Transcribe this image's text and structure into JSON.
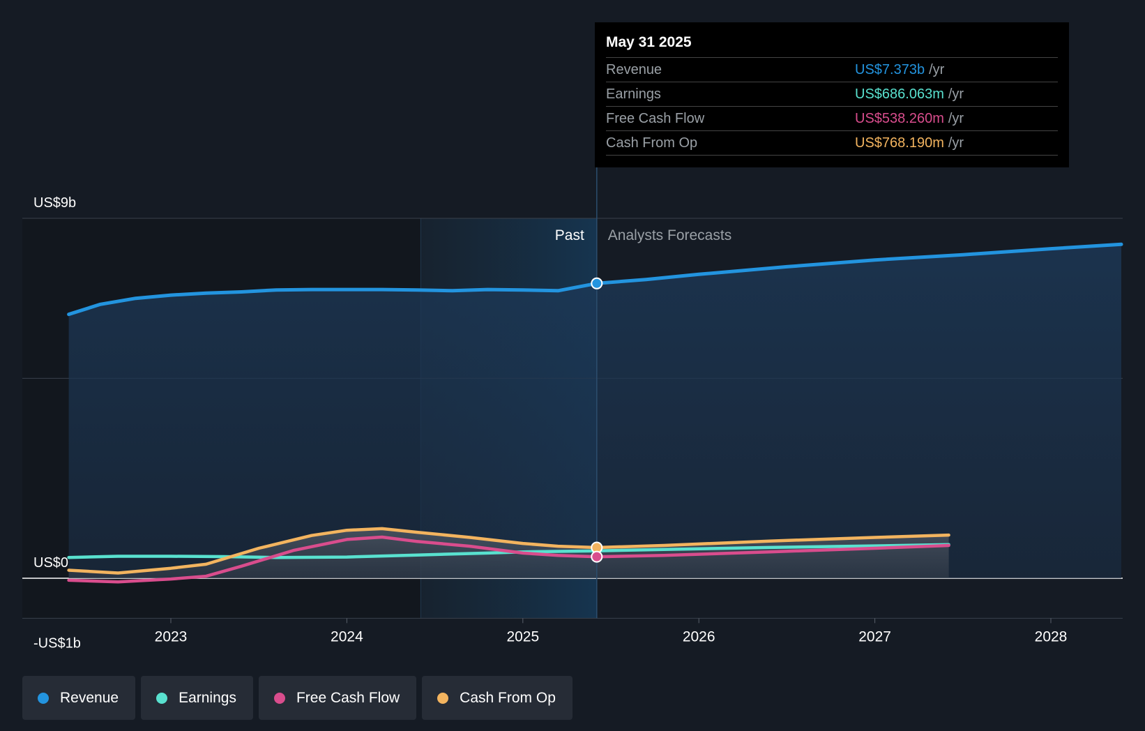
{
  "chart_data": {
    "type": "line",
    "x_unit": "year",
    "xlim": [
      2022.4,
      2028.4
    ],
    "ylim": [
      -1,
      9
    ],
    "y_unit": "US$ billions",
    "y_tick_labels": [
      {
        "value": 9,
        "label": "US$9b"
      },
      {
        "value": 0,
        "label": "US$0"
      },
      {
        "value": -1,
        "label": "-US$1b"
      }
    ],
    "gridlines": [
      9,
      5,
      0,
      -1
    ],
    "x_ticks": [
      {
        "value": 2023,
        "label": "2023"
      },
      {
        "value": 2024,
        "label": "2024"
      },
      {
        "value": 2025,
        "label": "2025"
      },
      {
        "value": 2026,
        "label": "2026"
      },
      {
        "value": 2027,
        "label": "2027"
      },
      {
        "value": 2028,
        "label": "2028"
      }
    ],
    "past_label": "Past",
    "forecast_label": "Analysts Forecasts",
    "divider_x": 2025.42,
    "highlight_start_x": 2024.42,
    "series": [
      {
        "name": "Revenue",
        "color": "#2394df",
        "area": true,
        "points": [
          [
            2022.42,
            6.6
          ],
          [
            2022.6,
            6.85
          ],
          [
            2022.8,
            7.0
          ],
          [
            2023.0,
            7.08
          ],
          [
            2023.2,
            7.13
          ],
          [
            2023.4,
            7.16
          ],
          [
            2023.6,
            7.21
          ],
          [
            2023.8,
            7.22
          ],
          [
            2024.0,
            7.22
          ],
          [
            2024.2,
            7.22
          ],
          [
            2024.4,
            7.21
          ],
          [
            2024.6,
            7.19
          ],
          [
            2024.8,
            7.22
          ],
          [
            2025.0,
            7.21
          ],
          [
            2025.2,
            7.19
          ],
          [
            2025.42,
            7.373
          ],
          [
            2025.7,
            7.47
          ],
          [
            2026.0,
            7.6
          ],
          [
            2026.5,
            7.79
          ],
          [
            2027.0,
            7.96
          ],
          [
            2027.5,
            8.09
          ],
          [
            2028.0,
            8.24
          ],
          [
            2028.4,
            8.35
          ]
        ]
      },
      {
        "name": "Earnings",
        "color": "#59e1cf",
        "area": false,
        "points": [
          [
            2022.42,
            0.52
          ],
          [
            2022.7,
            0.55
          ],
          [
            2023.0,
            0.55
          ],
          [
            2023.3,
            0.54
          ],
          [
            2023.6,
            0.52
          ],
          [
            2024.0,
            0.53
          ],
          [
            2024.4,
            0.58
          ],
          [
            2024.8,
            0.63
          ],
          [
            2025.0,
            0.66
          ],
          [
            2025.42,
            0.686
          ],
          [
            2025.8,
            0.72
          ],
          [
            2026.4,
            0.77
          ],
          [
            2027.0,
            0.81
          ],
          [
            2027.42,
            0.84
          ]
        ]
      },
      {
        "name": "Free Cash Flow",
        "color": "#d94d8d",
        "area": false,
        "points": [
          [
            2022.42,
            -0.05
          ],
          [
            2022.7,
            -0.09
          ],
          [
            2023.0,
            -0.02
          ],
          [
            2023.2,
            0.05
          ],
          [
            2023.4,
            0.3
          ],
          [
            2023.7,
            0.7
          ],
          [
            2024.0,
            0.97
          ],
          [
            2024.2,
            1.03
          ],
          [
            2024.4,
            0.92
          ],
          [
            2024.7,
            0.8
          ],
          [
            2025.0,
            0.63
          ],
          [
            2025.2,
            0.57
          ],
          [
            2025.42,
            0.538
          ],
          [
            2025.8,
            0.57
          ],
          [
            2026.4,
            0.66
          ],
          [
            2027.0,
            0.75
          ],
          [
            2027.42,
            0.82
          ]
        ]
      },
      {
        "name": "Cash From Op",
        "color": "#f3b45f",
        "area": false,
        "points": [
          [
            2022.42,
            0.2
          ],
          [
            2022.7,
            0.13
          ],
          [
            2023.0,
            0.25
          ],
          [
            2023.2,
            0.35
          ],
          [
            2023.5,
            0.75
          ],
          [
            2023.8,
            1.07
          ],
          [
            2024.0,
            1.2
          ],
          [
            2024.2,
            1.24
          ],
          [
            2024.4,
            1.15
          ],
          [
            2024.7,
            1.02
          ],
          [
            2025.0,
            0.87
          ],
          [
            2025.2,
            0.8
          ],
          [
            2025.42,
            0.768
          ],
          [
            2025.8,
            0.82
          ],
          [
            2026.4,
            0.93
          ],
          [
            2027.0,
            1.02
          ],
          [
            2027.42,
            1.08
          ]
        ]
      }
    ]
  },
  "tooltip": {
    "date": "May 31 2025",
    "rows": [
      {
        "label": "Revenue",
        "value": "US$7.373b",
        "unit": "/yr",
        "color": "#2394df"
      },
      {
        "label": "Earnings",
        "value": "US$686.063m",
        "unit": "/yr",
        "color": "#59e1cf"
      },
      {
        "label": "Free Cash Flow",
        "value": "US$538.260m",
        "unit": "/yr",
        "color": "#d94d8d"
      },
      {
        "label": "Cash From Op",
        "value": "US$768.190m",
        "unit": "/yr",
        "color": "#f3b45f"
      }
    ]
  },
  "legend": [
    {
      "label": "Revenue",
      "color": "#2394df"
    },
    {
      "label": "Earnings",
      "color": "#59e1cf"
    },
    {
      "label": "Free Cash Flow",
      "color": "#d94d8d"
    },
    {
      "label": "Cash From Op",
      "color": "#f3b45f"
    }
  ]
}
